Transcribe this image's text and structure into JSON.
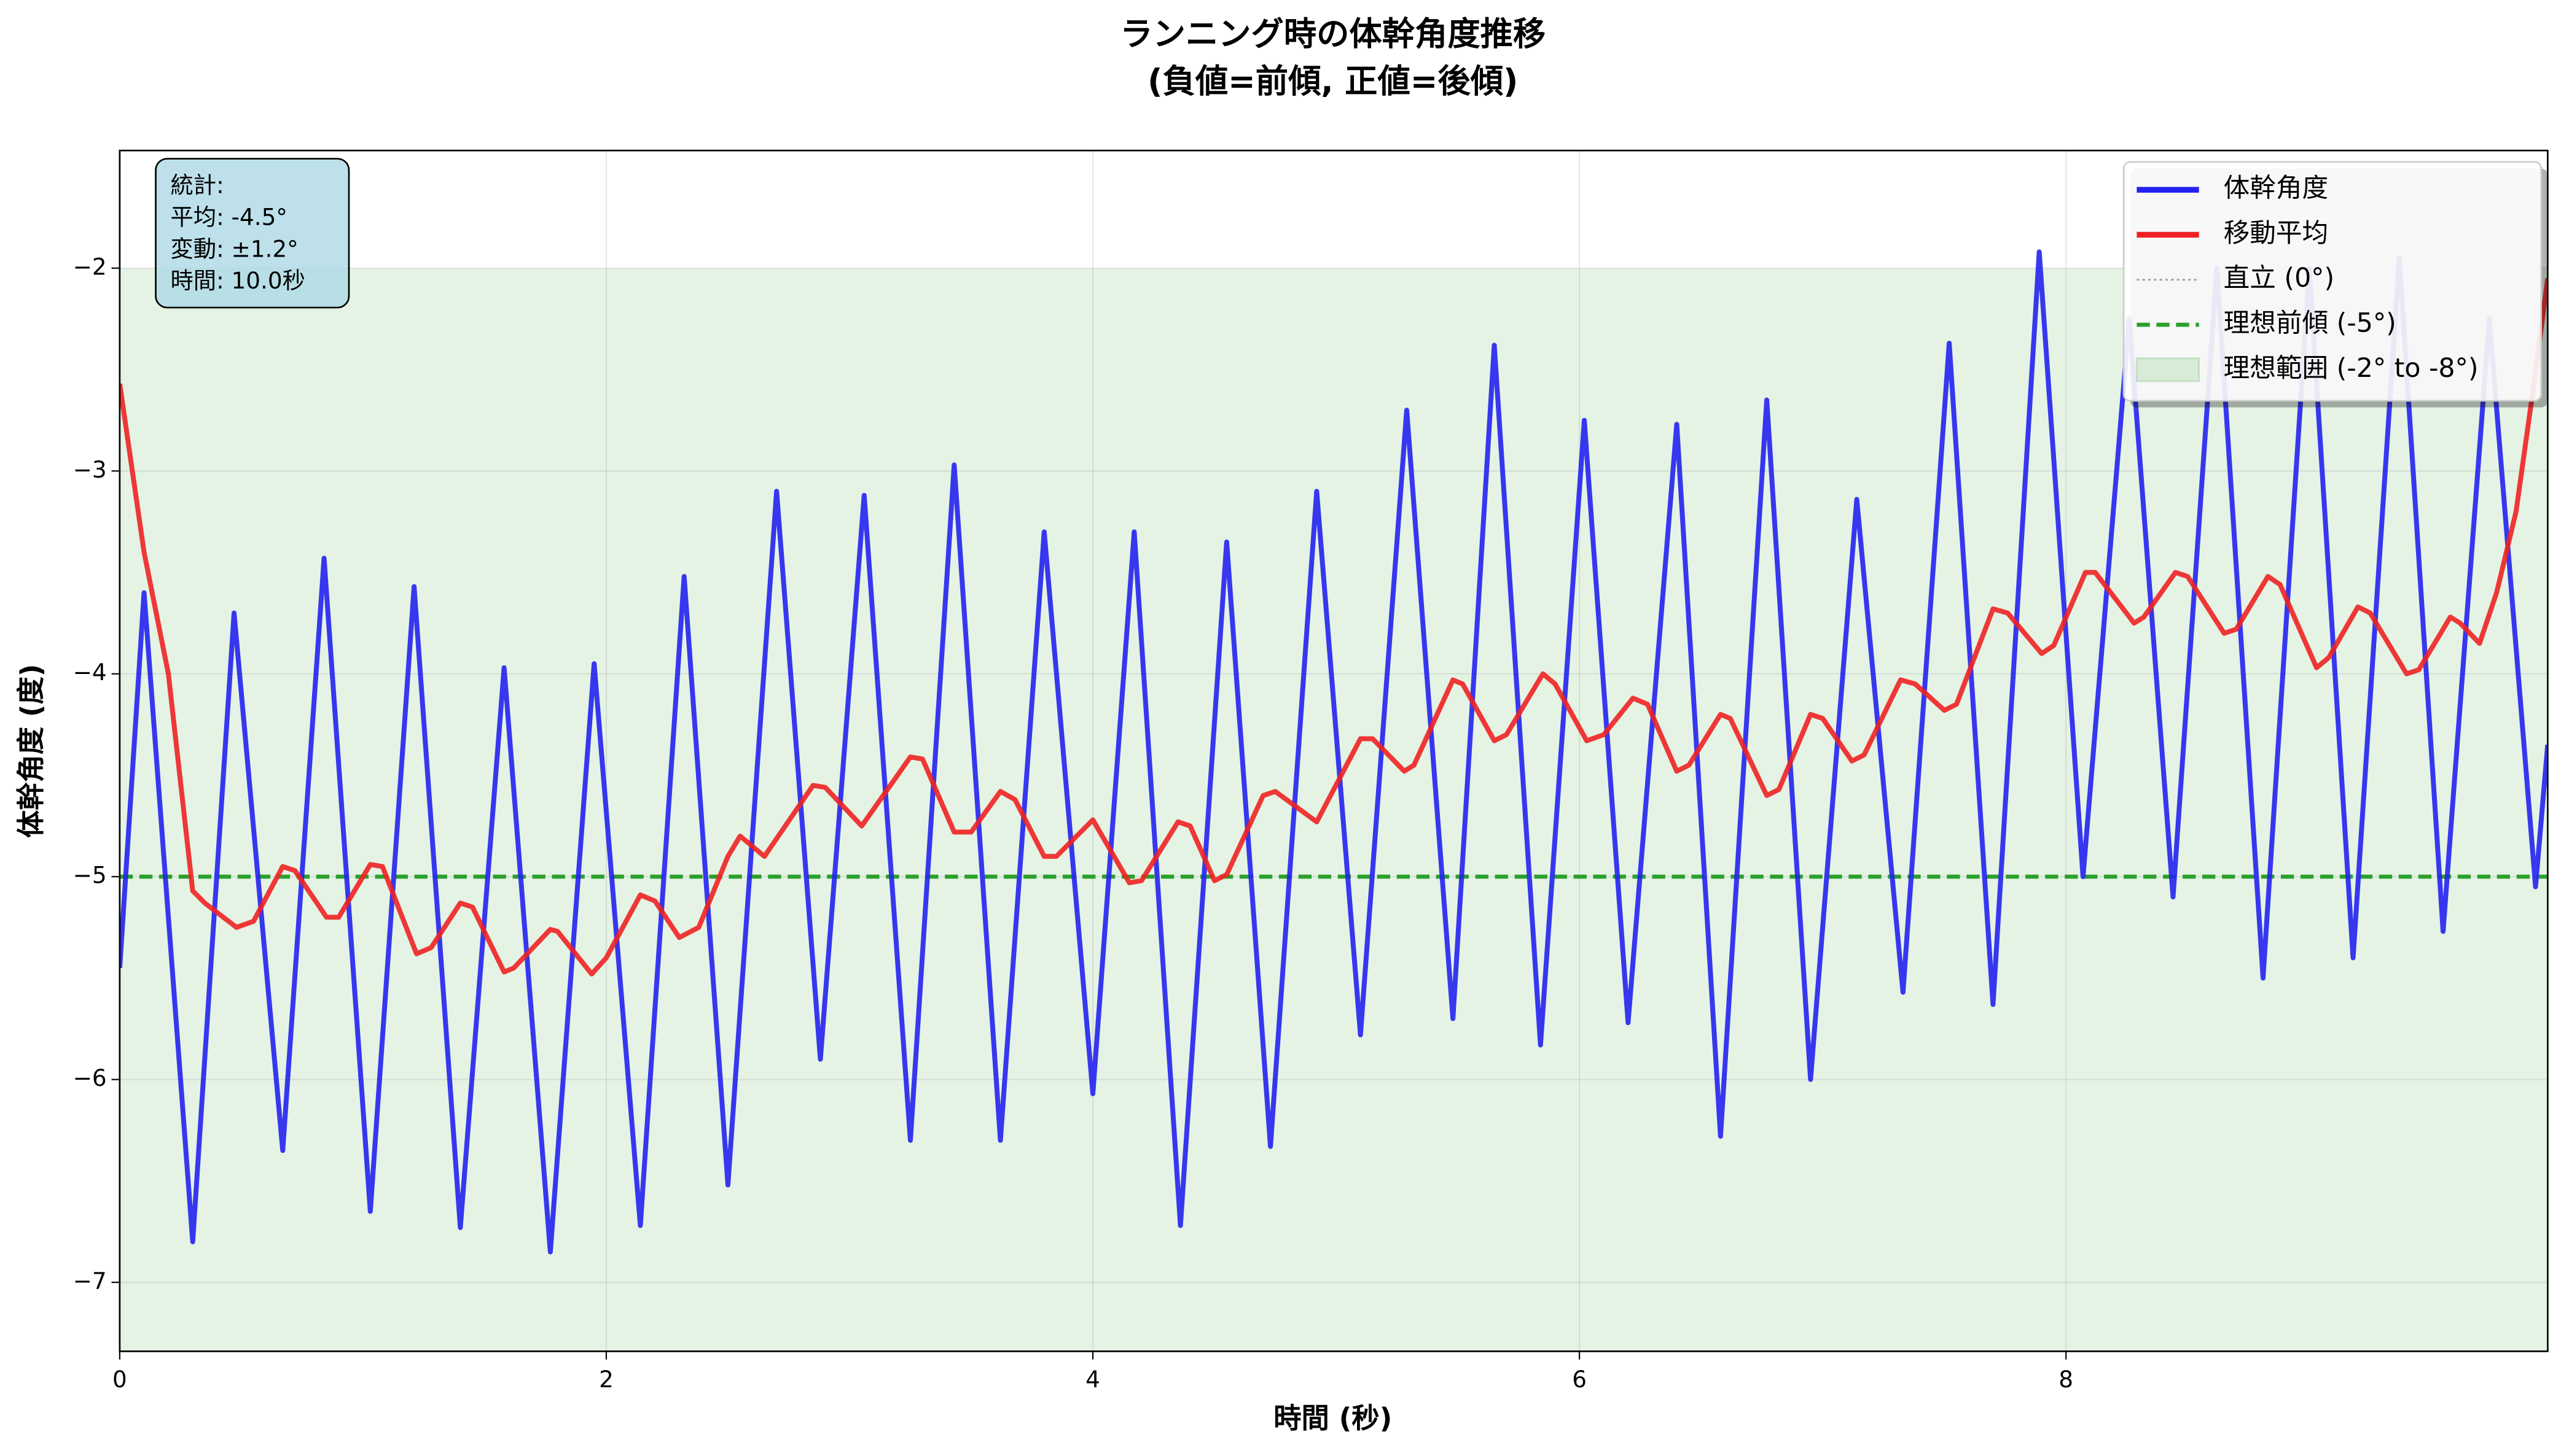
{
  "chart_data": {
    "type": "line",
    "title": [
      "ランニング時の体幹角度推移",
      "(負値=前傾, 正値=後傾)"
    ],
    "xlabel": "時間 (秒)",
    "ylabel": "体幹角度 (度)",
    "xlim": [
      0,
      9.98
    ],
    "ylim": [
      -7.34,
      -1.42
    ],
    "xticks": [
      0,
      2,
      4,
      6,
      8
    ],
    "yticks": [
      {
        "value": -7,
        "label": "−7"
      },
      {
        "value": -6,
        "label": "−6"
      },
      {
        "value": -5,
        "label": "−5"
      },
      {
        "value": -4,
        "label": "−4"
      },
      {
        "value": -3,
        "label": "−3"
      },
      {
        "value": -2,
        "label": "−2"
      }
    ],
    "grid": true,
    "legend": "upper right",
    "annotation": [
      "統計:",
      "平均: -4.5°",
      "変動: ±1.2°",
      "時間: 10.0秒"
    ],
    "series": [
      {
        "name": "体幹角度",
        "color": "#2222ee",
        "x": [
          0,
          0.1,
          0.3,
          0.47,
          0.67,
          0.84,
          1.03,
          1.21,
          1.4,
          1.58,
          1.77,
          1.95,
          2.14,
          2.32,
          2.5,
          2.7,
          2.88,
          3.06,
          3.25,
          3.43,
          3.62,
          3.8,
          4.0,
          4.17,
          4.36,
          4.55,
          4.73,
          4.92,
          5.1,
          5.29,
          5.48,
          5.65,
          5.84,
          6.02,
          6.2,
          6.4,
          6.58,
          6.77,
          6.95,
          7.14,
          7.33,
          7.52,
          7.7,
          7.89,
          8.07,
          8.26,
          8.44,
          8.62,
          8.81,
          9.0,
          9.18,
          9.37,
          9.55,
          9.74,
          9.93,
          9.98
        ],
        "values": [
          -5.45,
          -3.6,
          -6.8,
          -3.7,
          -6.35,
          -3.43,
          -6.65,
          -3.57,
          -6.73,
          -3.97,
          -6.85,
          -3.95,
          -6.72,
          -3.52,
          -6.52,
          -3.1,
          -5.9,
          -3.12,
          -6.3,
          -2.97,
          -6.3,
          -3.3,
          -6.07,
          -3.3,
          -6.72,
          -3.35,
          -6.33,
          -3.1,
          -5.78,
          -2.7,
          -5.7,
          -2.38,
          -5.83,
          -2.75,
          -5.72,
          -2.77,
          -6.28,
          -2.65,
          -6.0,
          -3.14,
          -5.57,
          -2.37,
          -5.63,
          -1.92,
          -5.0,
          -2.25,
          -5.1,
          -2.0,
          -5.5,
          -2.0,
          -5.4,
          -1.95,
          -5.27,
          -2.25,
          -5.05,
          -4.35
        ]
      },
      {
        "name": "移動平均",
        "color": "#ee2222",
        "x": [
          0,
          0.1,
          0.2,
          0.3,
          0.35,
          0.48,
          0.55,
          0.67,
          0.72,
          0.85,
          0.9,
          1.03,
          1.08,
          1.22,
          1.28,
          1.4,
          1.45,
          1.58,
          1.62,
          1.77,
          1.8,
          1.94,
          2.0,
          2.14,
          2.2,
          2.3,
          2.38,
          2.5,
          2.55,
          2.65,
          2.85,
          2.9,
          3.05,
          3.25,
          3.3,
          3.43,
          3.5,
          3.62,
          3.68,
          3.8,
          3.85,
          4.0,
          4.15,
          4.2,
          4.35,
          4.4,
          4.5,
          4.55,
          4.7,
          4.75,
          4.92,
          5.1,
          5.15,
          5.28,
          5.32,
          5.48,
          5.52,
          5.65,
          5.7,
          5.85,
          5.9,
          6.03,
          6.1,
          6.22,
          6.28,
          6.4,
          6.45,
          6.58,
          6.62,
          6.77,
          6.82,
          6.95,
          7.0,
          7.12,
          7.17,
          7.32,
          7.38,
          7.5,
          7.55,
          7.7,
          7.76,
          7.9,
          7.95,
          8.08,
          8.12,
          8.28,
          8.32,
          8.45,
          8.5,
          8.65,
          8.7,
          8.83,
          8.88,
          9.03,
          9.08,
          9.2,
          9.25,
          9.4,
          9.45,
          9.58,
          9.62,
          9.7,
          9.77,
          9.85,
          9.92,
          9.98
        ],
        "values": [
          -2.57,
          -3.4,
          -4.0,
          -5.07,
          -5.13,
          -5.25,
          -5.22,
          -4.95,
          -4.97,
          -5.2,
          -5.2,
          -4.94,
          -4.95,
          -5.38,
          -5.35,
          -5.13,
          -5.15,
          -5.47,
          -5.45,
          -5.26,
          -5.27,
          -5.48,
          -5.4,
          -5.09,
          -5.12,
          -5.3,
          -5.25,
          -4.9,
          -4.8,
          -4.9,
          -4.55,
          -4.56,
          -4.75,
          -4.41,
          -4.42,
          -4.78,
          -4.78,
          -4.58,
          -4.62,
          -4.9,
          -4.9,
          -4.72,
          -5.03,
          -5.02,
          -4.73,
          -4.75,
          -5.02,
          -4.99,
          -4.6,
          -4.58,
          -4.73,
          -4.32,
          -4.32,
          -4.48,
          -4.45,
          -4.03,
          -4.05,
          -4.33,
          -4.3,
          -4.0,
          -4.05,
          -4.33,
          -4.3,
          -4.12,
          -4.15,
          -4.48,
          -4.45,
          -4.2,
          -4.22,
          -4.6,
          -4.57,
          -4.2,
          -4.22,
          -4.43,
          -4.4,
          -4.03,
          -4.05,
          -4.18,
          -4.15,
          -3.68,
          -3.7,
          -3.9,
          -3.86,
          -3.5,
          -3.5,
          -3.75,
          -3.72,
          -3.5,
          -3.52,
          -3.8,
          -3.78,
          -3.52,
          -3.56,
          -3.97,
          -3.92,
          -3.67,
          -3.7,
          -4.0,
          -3.98,
          -3.72,
          -3.75,
          -3.85,
          -3.6,
          -3.2,
          -2.6,
          -2.05
        ]
      }
    ],
    "hlines": [
      {
        "name": "直立 (0°)",
        "y": 0,
        "color": "#999999",
        "style": "dotted"
      },
      {
        "name": "理想前傾 (-5°)",
        "y": -5,
        "color": "#2ca02c",
        "style": "dashed"
      }
    ],
    "span": {
      "name": "理想範囲 (-2° to -8°)",
      "y": [
        -2,
        -8
      ],
      "color": "#2ca02c"
    }
  }
}
